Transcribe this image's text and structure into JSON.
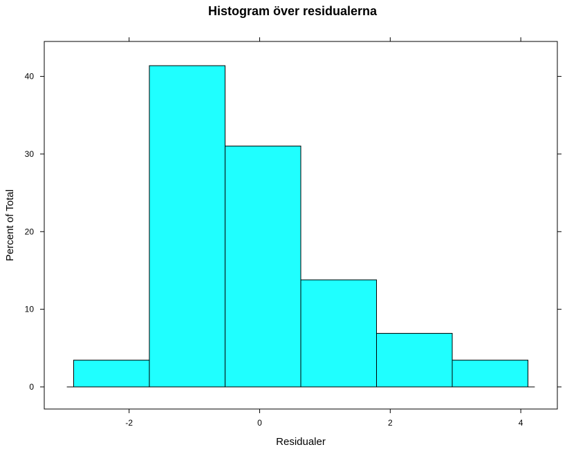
{
  "chart_data": {
    "type": "bar",
    "title": "Histogram över residualerna",
    "xlabel": "Residualer",
    "ylabel": "Percent of Total",
    "bins": [
      {
        "from": -2.85,
        "to": -1.69,
        "value": 3.45
      },
      {
        "from": -1.69,
        "to": -0.53,
        "value": 41.38
      },
      {
        "from": -0.53,
        "to": 0.63,
        "value": 31.03
      },
      {
        "from": 0.63,
        "to": 1.79,
        "value": 13.79
      },
      {
        "from": 1.79,
        "to": 2.95,
        "value": 6.9
      },
      {
        "from": 2.95,
        "to": 4.11,
        "value": 3.45
      }
    ],
    "xlim": [
      -3.3,
      4.56
    ],
    "ylim": [
      -2.85,
      44.5
    ],
    "x_ticks": [
      -2,
      0,
      2,
      4
    ],
    "x_tick_labels": [
      "-2",
      "0",
      "2",
      "4"
    ],
    "y_ticks": [
      0,
      10,
      20,
      30,
      40
    ],
    "y_tick_labels": [
      "0",
      "10",
      "20",
      "30",
      "40"
    ],
    "bar_color": "#1FFFFF",
    "grid": false,
    "legend": "none"
  }
}
